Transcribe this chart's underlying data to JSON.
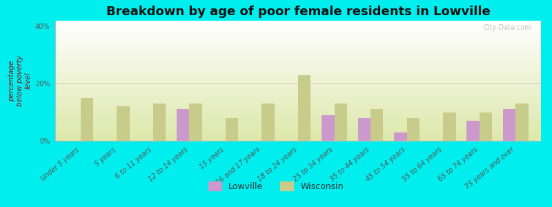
{
  "title": "Breakdown by age of poor female residents in Lowville",
  "categories": [
    "Under 5 years",
    "5 years",
    "6 to 11 years",
    "12 to 14 years",
    "15 years",
    "16 and 17 years",
    "18 to 24 years",
    "25 to 34 years",
    "35 to 44 years",
    "45 to 54 years",
    "55 to 64 years",
    "65 to 74 years",
    "75 years and over"
  ],
  "lowville": [
    0,
    0,
    0,
    11,
    0,
    0,
    0,
    9,
    8,
    3,
    0,
    7,
    11
  ],
  "wisconsin": [
    15,
    12,
    13,
    13,
    8,
    13,
    23,
    13,
    11,
    8,
    10,
    10,
    13
  ],
  "lowville_color": "#cc99cc",
  "wisconsin_color": "#c8cc8a",
  "background_color": "#00eeee",
  "ylabel": "percentage\nbelow poverty\nlevel",
  "ylim": [
    0,
    42
  ],
  "yticks": [
    0,
    20,
    40
  ],
  "ytick_labels": [
    "0%",
    "20%",
    "40%"
  ],
  "title_fontsize": 13,
  "axis_label_fontsize": 7.5,
  "tick_fontsize": 7,
  "legend_lowville": "Lowville",
  "legend_wisconsin": "Wisconsin",
  "bar_width": 0.35
}
